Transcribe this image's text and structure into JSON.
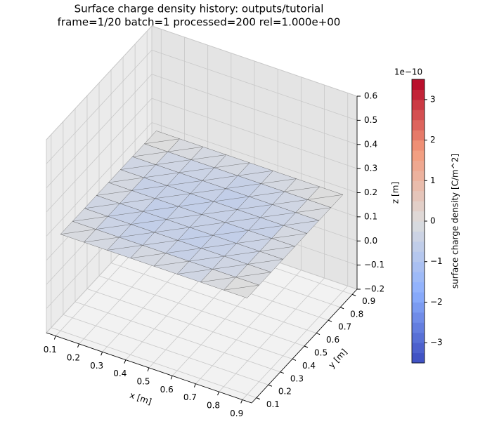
{
  "chart_data": {
    "type": "surface3d",
    "title": "Surface charge density history: outputs/tutorial",
    "subtitle": "frame=1/20 batch=1 processed=200 rel=1.000e+00",
    "xlabel": "x [m]",
    "ylabel": "y [m]",
    "zlabel": "z [m]",
    "xlim": [
      0.06,
      0.94
    ],
    "ylim": [
      0.06,
      0.94
    ],
    "zlim": [
      -0.2,
      0.6
    ],
    "xticks": [
      0.1,
      0.2,
      0.3,
      0.4,
      0.5,
      0.6,
      0.7,
      0.8,
      0.9
    ],
    "yticks": [
      0.1,
      0.2,
      0.3,
      0.4,
      0.5,
      0.6,
      0.7,
      0.8,
      0.9
    ],
    "zticks": [
      {
        "value": -0.2,
        "label": "−0.2"
      },
      {
        "value": -0.1,
        "label": "−0.1"
      },
      {
        "value": 0,
        "label": "0.0"
      },
      0.1,
      0.2,
      0.3,
      0.4,
      0.5,
      0.6
    ],
    "grid": true,
    "surface": {
      "x": [
        0.1,
        0.2,
        0.3,
        0.4,
        0.5,
        0.6,
        0.7,
        0.8,
        0.9
      ],
      "y": [
        0.1,
        0.2,
        0.3,
        0.4,
        0.5,
        0.6,
        0.7,
        0.8,
        0.9
      ],
      "z": [
        [
          0.2,
          0.2,
          0.2,
          0.2,
          0.2,
          0.2,
          0.2,
          0.2,
          0.2
        ],
        [
          0.2,
          0.2,
          0.2,
          0.2,
          0.2,
          0.2,
          0.2,
          0.2,
          0.2
        ],
        [
          0.2,
          0.2,
          0.2,
          0.2,
          0.2,
          0.2,
          0.2,
          0.2,
          0.2
        ],
        [
          0.2,
          0.2,
          0.2,
          0.2,
          0.2,
          0.2,
          0.2,
          0.2,
          0.2
        ],
        [
          0.2,
          0.2,
          0.2,
          0.2,
          0.2,
          0.2,
          0.2,
          0.2,
          0.2
        ],
        [
          0.2,
          0.2,
          0.2,
          0.2,
          0.2,
          0.2,
          0.2,
          0.2,
          0.2
        ],
        [
          0.2,
          0.2,
          0.2,
          0.2,
          0.2,
          0.2,
          0.2,
          0.2,
          0.2
        ],
        [
          0.2,
          0.2,
          0.2,
          0.2,
          0.2,
          0.2,
          0.2,
          0.2,
          0.2
        ],
        [
          0.2,
          0.2,
          0.2,
          0.2,
          0.2,
          0.2,
          0.2,
          0.2,
          0.2
        ]
      ],
      "charge": [
        [
          -0.1,
          -0.2,
          -0.3,
          -0.2,
          -0.2,
          -0.3,
          -0.1,
          0
        ],
        [
          -0.2,
          -0.4,
          -0.5,
          -0.4,
          -0.5,
          -0.4,
          -0.3,
          -0.1
        ],
        [
          -0.3,
          -0.5,
          -0.6,
          -0.5,
          -0.6,
          -0.5,
          -0.4,
          -0.2
        ],
        [
          -0.2,
          -0.4,
          -0.6,
          -0.5,
          -0.5,
          -0.6,
          -0.4,
          -0.2
        ],
        [
          -0.2,
          -0.5,
          -0.5,
          -0.6,
          -0.5,
          -0.5,
          -0.5,
          -0.2
        ],
        [
          -0.3,
          -0.4,
          -0.5,
          -0.5,
          -0.6,
          -0.5,
          -0.4,
          -0.3
        ],
        [
          -0.1,
          -0.3,
          -0.4,
          -0.4,
          -0.5,
          -0.4,
          -0.3,
          -0.1
        ],
        [
          0,
          -0.1,
          -0.2,
          -0.2,
          -0.3,
          -0.2,
          -0.1,
          0
        ]
      ]
    },
    "colorbar": {
      "label": "surface charge density [C/m^2]",
      "offset_label": "1e−10",
      "lim": [
        -3.5,
        3.5
      ],
      "ticks": [
        {
          "value": -3,
          "label": "−3"
        },
        {
          "value": -2,
          "label": "−2"
        },
        {
          "value": -1,
          "label": "−1"
        },
        0,
        1,
        2,
        3
      ]
    }
  }
}
